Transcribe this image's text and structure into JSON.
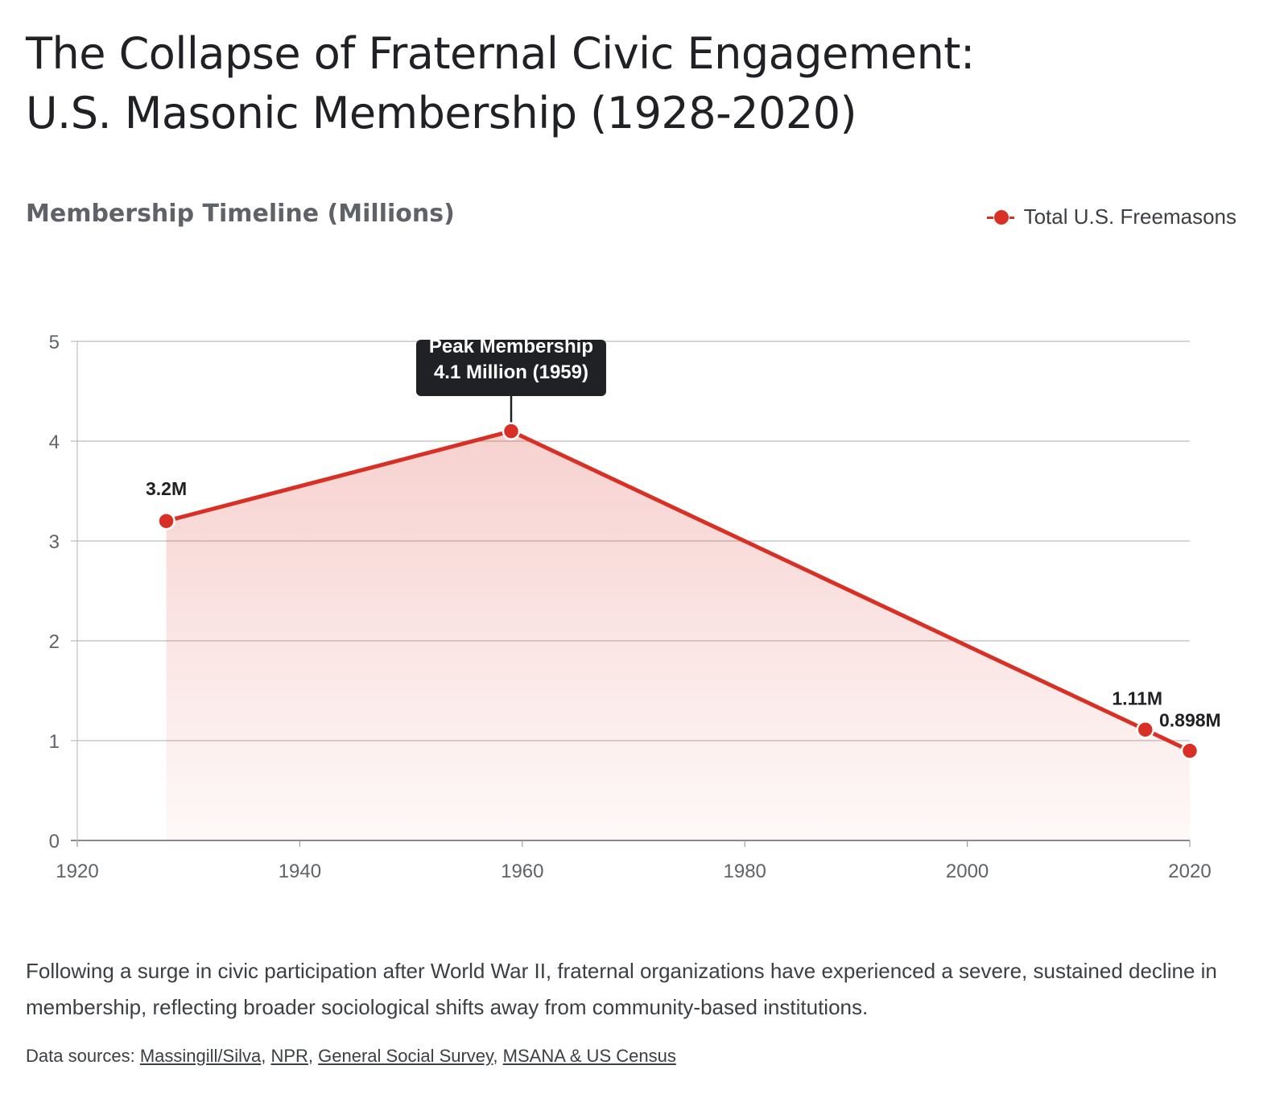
{
  "header": {
    "title_line1": "The Collapse of Fraternal Civic Engagement:",
    "title_line2": "U.S. Masonic Membership (1928-2020)"
  },
  "chart_data": {
    "type": "area",
    "title": "Membership Timeline (Millions)",
    "x": [
      1928,
      1959,
      2016,
      2020
    ],
    "series": [
      {
        "name": "Total U.S. Freemasons",
        "values": [
          3.2,
          4.1,
          1.11,
          0.898
        ],
        "labels": [
          "3.2M",
          "",
          "1.11M",
          "0.898M"
        ],
        "color": "#d93025"
      }
    ],
    "xlim": [
      1920,
      2020
    ],
    "ylim": [
      0,
      5
    ],
    "xticks": [
      "1920",
      "1940",
      "1960",
      "1980",
      "2000",
      "2020"
    ],
    "yticks": [
      "0",
      "1",
      "2",
      "3",
      "4",
      "5"
    ],
    "grid": "horizontal",
    "legend": "top-right",
    "annotation": {
      "x": 1959,
      "y": 4.1,
      "line1": "Peak Membership",
      "line2": "4.1 Million (1959)"
    }
  },
  "caption": "Following a surge in civic participation after World War II, fraternal organizations have experienced a severe, sustained decline in membership, reflecting broader sociological shifts away from community-based institutions.",
  "sources": {
    "prefix": "Data sources: ",
    "links": [
      "Massingill/Silva",
      "NPR",
      "General Social Survey",
      "MSANA & US Census"
    ],
    "separator": ", "
  }
}
